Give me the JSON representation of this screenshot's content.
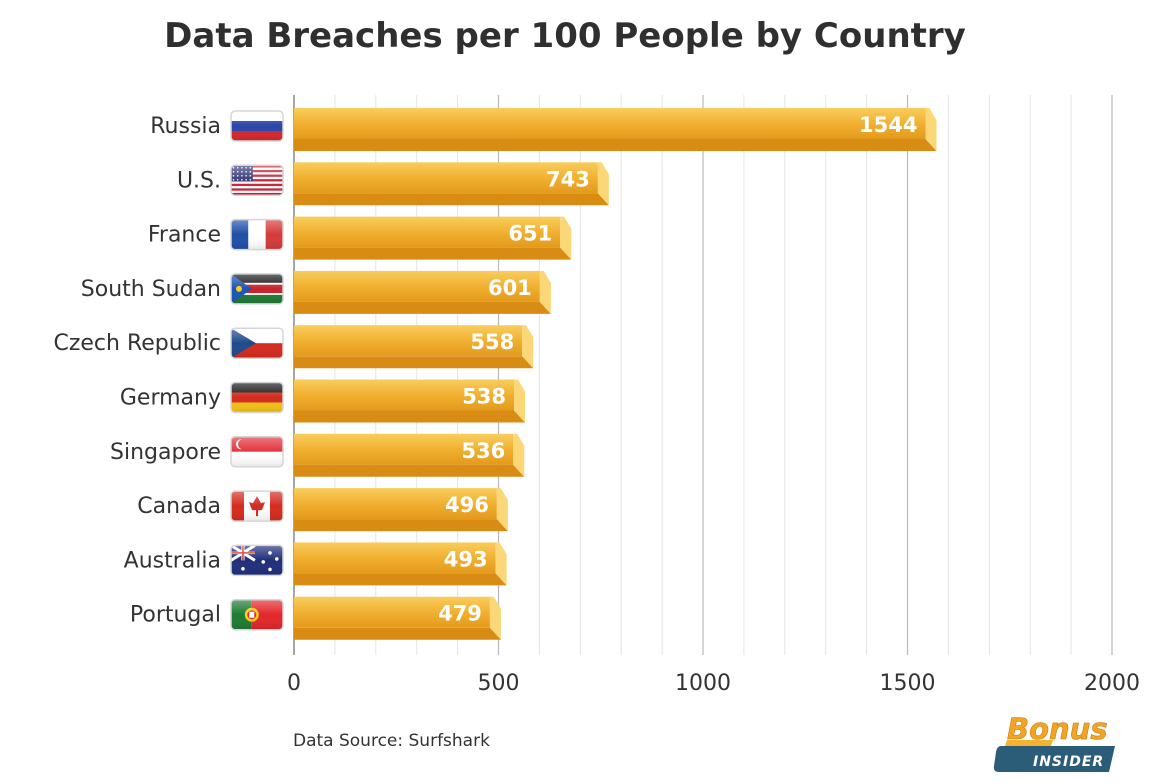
{
  "chart_data": {
    "type": "bar",
    "orientation": "horizontal",
    "title": "Data Breaches per 100 People by Country",
    "categories": [
      "Russia",
      "U.S.",
      "France",
      "South Sudan",
      "Czech Republic",
      "Germany",
      "Singapore",
      "Canada",
      "Australia",
      "Portugal"
    ],
    "values": [
      1544,
      743,
      651,
      601,
      558,
      538,
      536,
      496,
      493,
      479
    ],
    "xlim": [
      0,
      2000
    ],
    "xticks": [
      0,
      500,
      1000,
      1500,
      2000
    ],
    "grid": true,
    "bar_color": "#f2b232",
    "flag_icons": [
      "russia-flag-icon",
      "us-flag-icon",
      "france-flag-icon",
      "south-sudan-flag-icon",
      "czech-republic-flag-icon",
      "germany-flag-icon",
      "singapore-flag-icon",
      "canada-flag-icon",
      "australia-flag-icon",
      "portugal-flag-icon"
    ]
  },
  "source": "Data Source: Surfshark",
  "logo": {
    "brand": "Bonus",
    "sub": "INSIDER"
  }
}
